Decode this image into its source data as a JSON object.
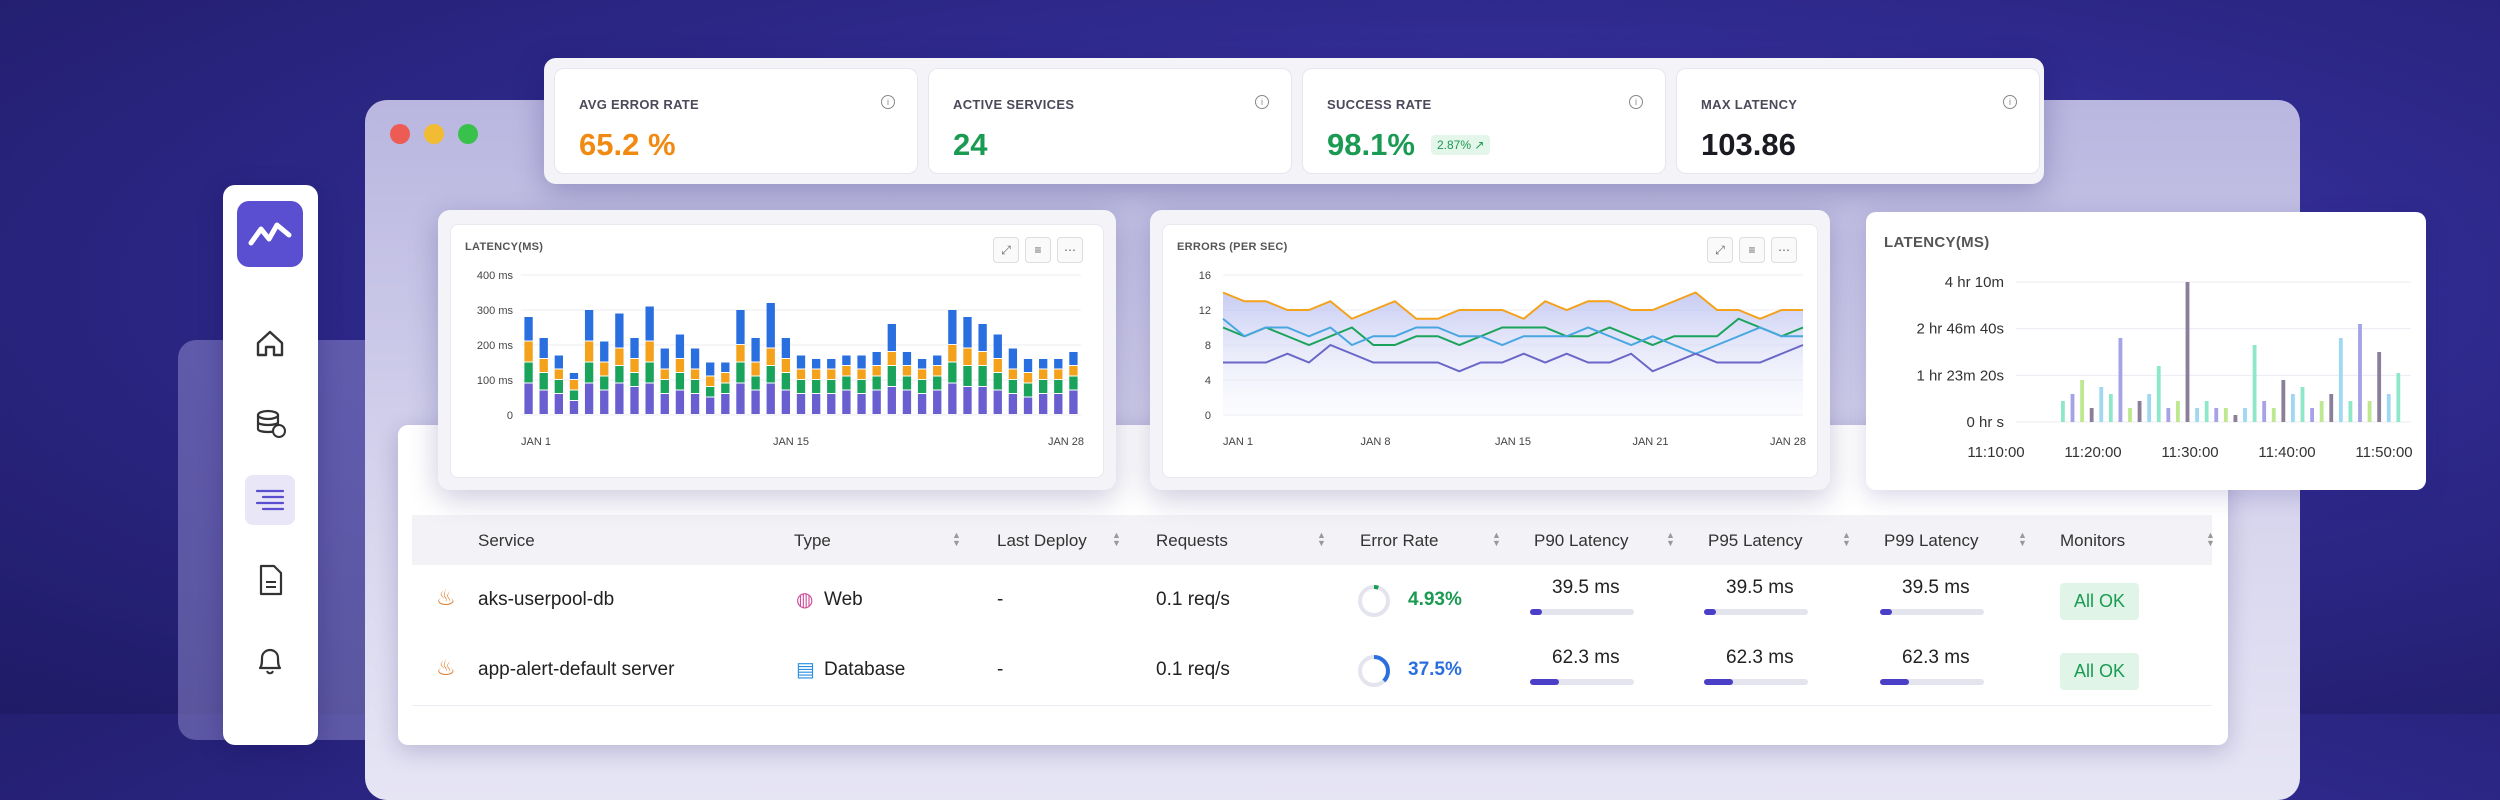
{
  "kpis": [
    {
      "label": "AVG ERROR RATE",
      "value": "65.2 %",
      "color": "#f08a12"
    },
    {
      "label": "ACTIVE SERVICES",
      "value": "24",
      "color": "#1a9a52"
    },
    {
      "label": "SUCCESS RATE",
      "value": "98.1%",
      "color": "#1a9a52",
      "badge": "2.87% ↗"
    },
    {
      "label": "MAX LATENCY",
      "value": "103.86",
      "color": "#1a1a22"
    }
  ],
  "sidebar": {
    "icons": [
      "home-icon",
      "database-icon",
      "list-icon",
      "document-icon",
      "alert-icon"
    ]
  },
  "chart_data": [
    {
      "type": "bar",
      "title": "LATENCY(MS)",
      "yticks": [
        "400 ms",
        "300 ms",
        "200 ms",
        "100 ms",
        "0"
      ],
      "xticks": [
        "JAN 1",
        "JAN 15",
        "JAN 28"
      ],
      "ylim": [
        0,
        400
      ],
      "series": [
        {
          "color": "#6a5fd0",
          "values": [
            90,
            70,
            60,
            40,
            90,
            70,
            90,
            80,
            90,
            60,
            70,
            60,
            50,
            60,
            90,
            70,
            90,
            70,
            60,
            60,
            60,
            70,
            60,
            70,
            80,
            70,
            60,
            70,
            90,
            80,
            80,
            70,
            60,
            50,
            60,
            60,
            70
          ]
        },
        {
          "color": "#1aa35a",
          "values": [
            60,
            50,
            40,
            30,
            60,
            40,
            50,
            40,
            60,
            40,
            50,
            40,
            30,
            30,
            60,
            40,
            50,
            50,
            40,
            40,
            40,
            40,
            40,
            40,
            60,
            40,
            40,
            40,
            60,
            60,
            60,
            50,
            40,
            40,
            40,
            40,
            40
          ]
        },
        {
          "color": "#f4a11c",
          "values": [
            60,
            40,
            30,
            30,
            60,
            40,
            50,
            40,
            60,
            30,
            40,
            30,
            30,
            30,
            50,
            40,
            50,
            40,
            30,
            30,
            30,
            30,
            30,
            30,
            40,
            30,
            30,
            30,
            50,
            50,
            40,
            40,
            30,
            30,
            30,
            30,
            30
          ]
        },
        {
          "color": "#2a6fe0",
          "values": [
            70,
            60,
            40,
            20,
            90,
            60,
            100,
            60,
            100,
            60,
            70,
            60,
            40,
            30,
            100,
            70,
            130,
            60,
            40,
            30,
            30,
            30,
            40,
            40,
            80,
            40,
            30,
            30,
            100,
            90,
            80,
            70,
            60,
            40,
            30,
            30,
            40
          ]
        }
      ]
    },
    {
      "type": "area",
      "title": "ERRORS (PER SEC)",
      "yticks": [
        "16",
        "12",
        "8",
        "4",
        "0"
      ],
      "xticks": [
        "JAN 1",
        "JAN 8",
        "JAN 15",
        "JAN 21",
        "JAN 28"
      ],
      "ylim": [
        0,
        16
      ],
      "series": [
        {
          "color": "#f4a11c",
          "values": [
            14,
            13,
            13,
            12,
            12,
            13,
            11,
            12,
            13,
            11,
            11,
            12,
            12,
            12,
            11,
            13,
            12,
            13,
            13,
            12,
            12,
            13,
            14,
            12,
            12,
            11,
            12,
            12
          ]
        },
        {
          "color": "#1aa35a",
          "values": [
            10,
            9,
            10,
            9,
            8,
            9,
            10,
            8,
            8,
            9,
            9,
            8,
            9,
            10,
            10,
            10,
            9,
            9,
            10,
            9,
            8,
            9,
            9,
            9,
            11,
            10,
            9,
            10
          ]
        },
        {
          "color": "#49a6e0",
          "values": [
            11,
            9,
            10,
            10,
            9,
            10,
            8,
            9,
            9,
            10,
            10,
            9,
            9,
            8,
            9,
            9,
            9,
            10,
            9,
            8,
            9,
            8,
            7,
            8,
            9,
            10,
            9,
            9
          ]
        },
        {
          "color": "#6a66c8",
          "values": [
            6,
            6,
            6,
            7,
            6,
            8,
            7,
            6,
            6,
            6,
            6,
            5,
            6,
            6,
            7,
            6,
            7,
            6,
            6,
            7,
            5,
            6,
            7,
            6,
            6,
            6,
            7,
            8
          ]
        }
      ]
    },
    {
      "type": "bar",
      "title": "LATENCY(MS)",
      "yticks": [
        "4 hr 10m",
        "2 hr 46m 40s",
        "1 hr 23m 20s",
        "0 hr s"
      ],
      "xticks": [
        "11:10:00",
        "11:20:00",
        "11:30:00",
        "11:40:00",
        "11:50:00"
      ],
      "values": [
        0.15,
        0.2,
        0.3,
        0.1,
        0.25,
        0.2,
        0.6,
        0.1,
        0.15,
        0.2,
        0.4,
        0.1,
        0.15,
        1.0,
        0.1,
        0.15,
        0.1,
        0.1,
        0.05,
        0.1,
        0.55,
        0.15,
        0.1,
        0.3,
        0.2,
        0.25,
        0.1,
        0.15,
        0.2,
        0.6,
        0.15,
        0.7,
        0.15,
        0.5,
        0.2,
        0.35
      ]
    }
  ],
  "table": {
    "headers": [
      "Service",
      "Type",
      "Last Deploy",
      "Requests",
      "Error Rate",
      "P90 Latency",
      "P95 Latency",
      "P99 Latency",
      "Monitors"
    ],
    "rows": [
      {
        "service": "aks-userpool-db",
        "type": "Web",
        "deploy": "-",
        "requests": "0.1 req/s",
        "error": "4.93%",
        "error_color": "#1a9a52",
        "error_frac": 0.05,
        "p90": "39.5 ms",
        "p95": "39.5 ms",
        "p99": "39.5 ms",
        "lat_frac": 0.12,
        "monitor": "All OK"
      },
      {
        "service": "app-alert-default server",
        "type": "Database",
        "deploy": "-",
        "requests": "0.1 req/s",
        "error": "37.5%",
        "error_color": "#2a6fe0",
        "error_frac": 0.375,
        "p90": "62.3 ms",
        "p95": "62.3 ms",
        "p99": "62.3 ms",
        "lat_frac": 0.28,
        "monitor": "All OK"
      }
    ]
  }
}
